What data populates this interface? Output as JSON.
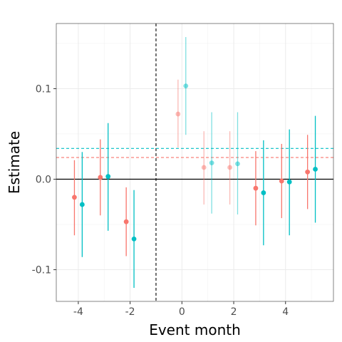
{
  "chart_data": {
    "type": "scatter",
    "subtype": "event-study point estimates with confidence intervals",
    "xlabel": "Event month",
    "ylabel": "Estimate",
    "xlim": [
      -4.85,
      5.85
    ],
    "ylim": [
      -0.135,
      0.172
    ],
    "x_ticks": [
      -4,
      -2,
      0,
      2,
      4
    ],
    "x_tick_labels": [
      "-4",
      "-2",
      "0",
      "2",
      "4"
    ],
    "y_ticks": [
      -0.1,
      0.0,
      0.1
    ],
    "y_tick_labels": [
      "-0.1",
      "0.0",
      "0.1"
    ],
    "grid": true,
    "legend": "none",
    "reference_lines": [
      {
        "axis": "y",
        "value": 0.0,
        "style": "solid",
        "color": "#000000"
      },
      {
        "axis": "x",
        "value": -1,
        "style": "dashed",
        "color": "#000000"
      },
      {
        "axis": "y",
        "value": 0.024,
        "style": "dashed",
        "color": "#F8766D"
      },
      {
        "axis": "y",
        "value": 0.034,
        "style": "dashed",
        "color": "#00BFC4"
      }
    ],
    "series": [
      {
        "color": "#F8766D",
        "points": [
          {
            "x": -4.15,
            "y": -0.02,
            "lo": -0.062,
            "hi": 0.021,
            "faded": false
          },
          {
            "x": -3.15,
            "y": 0.002,
            "lo": -0.04,
            "hi": 0.044,
            "faded": false
          },
          {
            "x": -2.15,
            "y": -0.047,
            "lo": -0.085,
            "hi": -0.009,
            "faded": false
          },
          {
            "x": -0.15,
            "y": 0.072,
            "lo": 0.035,
            "hi": 0.11,
            "faded": true
          },
          {
            "x": 0.85,
            "y": 0.013,
            "lo": -0.028,
            "hi": 0.053,
            "faded": true
          },
          {
            "x": 1.85,
            "y": 0.013,
            "lo": -0.028,
            "hi": 0.053,
            "faded": true
          },
          {
            "x": 2.85,
            "y": -0.01,
            "lo": -0.051,
            "hi": 0.031,
            "faded": false
          },
          {
            "x": 3.85,
            "y": -0.002,
            "lo": -0.043,
            "hi": 0.039,
            "faded": false
          },
          {
            "x": 4.85,
            "y": 0.008,
            "lo": -0.033,
            "hi": 0.049,
            "faded": false
          }
        ]
      },
      {
        "color": "#00BFC4",
        "points": [
          {
            "x": -3.85,
            "y": -0.028,
            "lo": -0.086,
            "hi": 0.03,
            "faded": false
          },
          {
            "x": -2.85,
            "y": 0.003,
            "lo": -0.057,
            "hi": 0.062,
            "faded": false
          },
          {
            "x": -1.85,
            "y": -0.066,
            "lo": -0.12,
            "hi": -0.012,
            "faded": false
          },
          {
            "x": 0.15,
            "y": 0.103,
            "lo": 0.049,
            "hi": 0.157,
            "faded": true
          },
          {
            "x": 1.15,
            "y": 0.018,
            "lo": -0.038,
            "hi": 0.074,
            "faded": true
          },
          {
            "x": 2.15,
            "y": 0.017,
            "lo": -0.039,
            "hi": 0.074,
            "faded": true
          },
          {
            "x": 3.15,
            "y": -0.015,
            "lo": -0.073,
            "hi": 0.043,
            "faded": false
          },
          {
            "x": 4.15,
            "y": -0.003,
            "lo": -0.062,
            "hi": 0.055,
            "faded": false
          },
          {
            "x": 5.15,
            "y": 0.011,
            "lo": -0.048,
            "hi": 0.07,
            "faded": false
          }
        ]
      }
    ]
  }
}
